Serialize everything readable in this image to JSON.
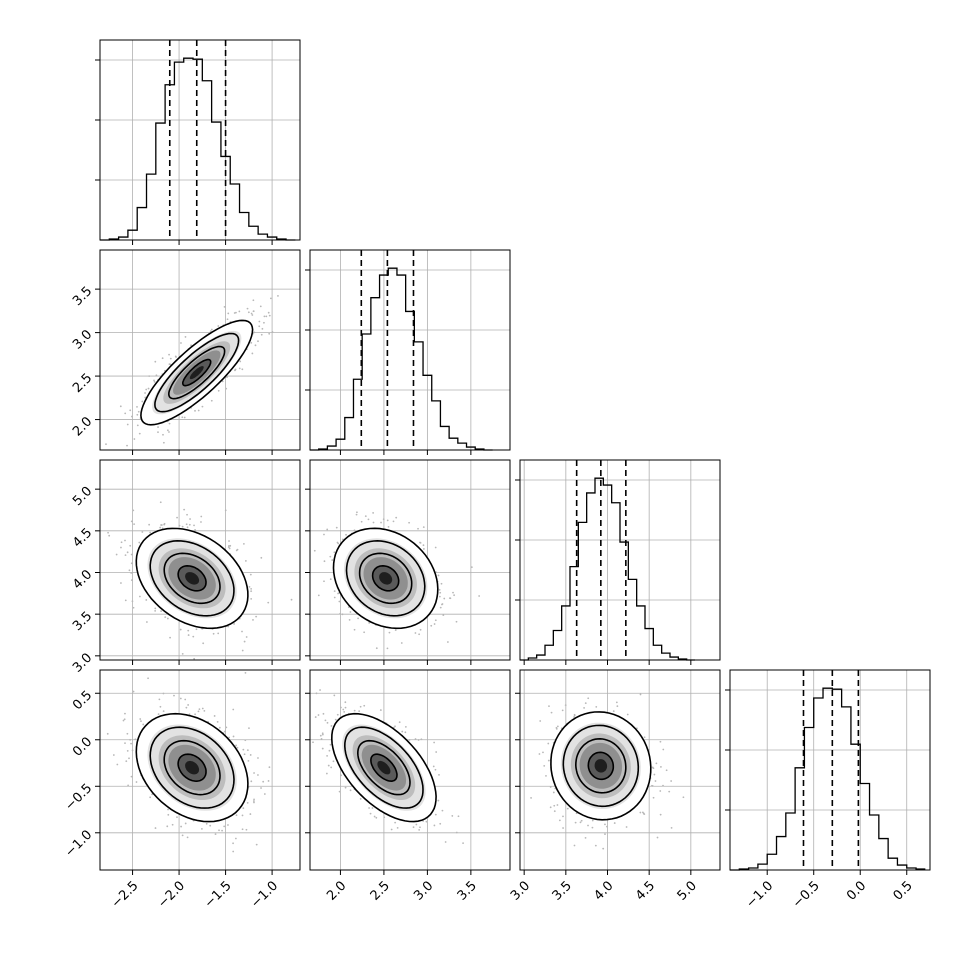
{
  "chart_data": {
    "type": "corner",
    "grid": true,
    "parameters": [
      {
        "index": 0,
        "range": [
          -2.85,
          -0.7
        ],
        "ticks": [
          -2.5,
          -2.0,
          -1.5,
          -1.0
        ],
        "tick_labels": [
          "−2.5",
          "−2.0",
          "−1.5",
          "−1.0"
        ],
        "quantiles": [
          -2.1,
          -1.81,
          -1.5
        ]
      },
      {
        "index": 1,
        "range": [
          1.65,
          3.95
        ],
        "ticks": [
          2.0,
          2.5,
          3.0,
          3.5
        ],
        "tick_labels": [
          "2.0",
          "2.5",
          "3.0",
          "3.5"
        ],
        "quantiles": [
          2.24,
          2.54,
          2.84
        ]
      },
      {
        "index": 2,
        "range": [
          2.95,
          5.35
        ],
        "ticks": [
          3.0,
          3.5,
          4.0,
          4.5,
          5.0
        ],
        "tick_labels": [
          "3.0",
          "3.5",
          "4.0",
          "4.5",
          "5.0"
        ],
        "quantiles": [
          3.63,
          3.92,
          4.22
        ]
      },
      {
        "index": 3,
        "range": [
          -1.4,
          0.75
        ],
        "ticks": [
          -1.0,
          -0.5,
          0.0,
          0.5
        ],
        "tick_labels": [
          "−1.0",
          "−0.5",
          "0.0",
          "0.5"
        ],
        "quantiles": [
          -0.61,
          -0.3,
          -0.02
        ]
      }
    ],
    "histograms": [
      {
        "param": 0,
        "bin_edges": [
          -2.85,
          -2.75,
          -2.65,
          -2.55,
          -2.45,
          -2.35,
          -2.25,
          -2.15,
          -2.05,
          -1.95,
          -1.85,
          -1.75,
          -1.65,
          -1.55,
          -1.45,
          -1.35,
          -1.25,
          -1.15,
          -1.05,
          -0.95,
          -0.85,
          -0.75
        ],
        "counts": [
          0,
          1,
          3,
          10,
          33,
          67,
          119,
          158,
          181,
          185,
          184,
          162,
          120,
          85,
          57,
          28,
          14,
          6,
          3,
          1,
          0
        ]
      },
      {
        "param": 1,
        "bin_edges": [
          1.65,
          1.75,
          1.85,
          1.95,
          2.05,
          2.15,
          2.25,
          2.35,
          2.45,
          2.55,
          2.65,
          2.75,
          2.85,
          2.95,
          3.05,
          3.15,
          3.25,
          3.35,
          3.45,
          3.55,
          3.65,
          3.75
        ],
        "counts": [
          0,
          1,
          4,
          11,
          33,
          72,
          118,
          155,
          178,
          185,
          178,
          141,
          110,
          76,
          50,
          24,
          12,
          7,
          3,
          1,
          0
        ]
      },
      {
        "param": 2,
        "bin_edges": [
          2.95,
          3.05,
          3.15,
          3.25,
          3.35,
          3.45,
          3.55,
          3.65,
          3.75,
          3.85,
          3.95,
          4.05,
          4.15,
          4.25,
          4.35,
          4.45,
          4.55,
          4.65,
          4.75,
          4.85,
          4.95,
          5.05
        ],
        "counts": [
          0,
          2,
          5,
          15,
          30,
          55,
          95,
          140,
          170,
          185,
          178,
          160,
          120,
          82,
          55,
          32,
          15,
          7,
          3,
          1,
          0
        ]
      },
      {
        "param": 3,
        "bin_edges": [
          -1.4,
          -1.3,
          -1.2,
          -1.1,
          -1.0,
          -0.9,
          -0.8,
          -0.7,
          -0.6,
          -0.5,
          -0.4,
          -0.3,
          -0.2,
          -0.1,
          0.0,
          0.1,
          0.2,
          0.3,
          0.4,
          0.5,
          0.6,
          0.7
        ],
        "counts": [
          0,
          1,
          2,
          6,
          16,
          34,
          58,
          104,
          145,
          175,
          185,
          184,
          166,
          128,
          88,
          56,
          32,
          12,
          5,
          2,
          1
        ]
      }
    ],
    "pairs": [
      {
        "x": 0,
        "y": 1,
        "center": [
          -1.81,
          2.54
        ],
        "sigma": [
          0.3,
          0.3
        ],
        "rho": 0.82
      },
      {
        "x": 0,
        "y": 2,
        "center": [
          -1.86,
          3.93
        ],
        "sigma": [
          0.3,
          0.3
        ],
        "rho": -0.33
      },
      {
        "x": 1,
        "y": 2,
        "center": [
          2.52,
          3.93
        ],
        "sigma": [
          0.3,
          0.3
        ],
        "rho": -0.22
      },
      {
        "x": 0,
        "y": 3,
        "center": [
          -1.86,
          -0.3
        ],
        "sigma": [
          0.3,
          0.29
        ],
        "rho": -0.3
      },
      {
        "x": 1,
        "y": 3,
        "center": [
          2.5,
          -0.3
        ],
        "sigma": [
          0.3,
          0.29
        ],
        "rho": -0.55
      },
      {
        "x": 2,
        "y": 3,
        "center": [
          3.92,
          -0.28
        ],
        "sigma": [
          0.3,
          0.29
        ],
        "rho": -0.05
      }
    ],
    "contour_levels_sigma": [
      0.5,
      1.0,
      1.5,
      2.0
    ]
  }
}
